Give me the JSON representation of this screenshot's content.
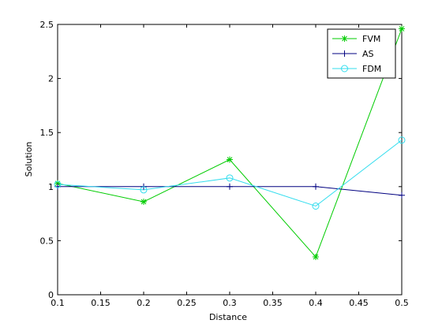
{
  "chart_data": {
    "type": "line",
    "title": "",
    "xlabel": "Distance",
    "ylabel": "Solution",
    "xlim": [
      0.1,
      0.5
    ],
    "ylim": [
      0,
      2.5
    ],
    "xticks": [
      "0.1",
      "0.15",
      "0.2",
      "0.25",
      "0.3",
      "0.35",
      "0.4",
      "0.45",
      "0.5"
    ],
    "yticks": [
      "0",
      "0.5",
      "1",
      "1.5",
      "2",
      "2.5"
    ],
    "grid": false,
    "legend_position": "top-right",
    "series": [
      {
        "name": "FVM",
        "color": "#00cc00",
        "marker": "asterisk",
        "x": [
          0.1,
          0.2,
          0.3,
          0.4,
          0.5
        ],
        "y": [
          1.03,
          0.86,
          1.25,
          0.35,
          2.46
        ]
      },
      {
        "name": "AS",
        "color": "#000080",
        "marker": "plus",
        "x": [
          0.1,
          0.2,
          0.3,
          0.4,
          0.5
        ],
        "y": [
          1.0,
          1.0,
          1.0,
          1.0,
          0.92
        ]
      },
      {
        "name": "FDM",
        "color": "#33ddee",
        "marker": "circle",
        "x": [
          0.1,
          0.2,
          0.3,
          0.4,
          0.5
        ],
        "y": [
          1.02,
          0.97,
          1.08,
          0.82,
          1.43
        ]
      }
    ]
  }
}
